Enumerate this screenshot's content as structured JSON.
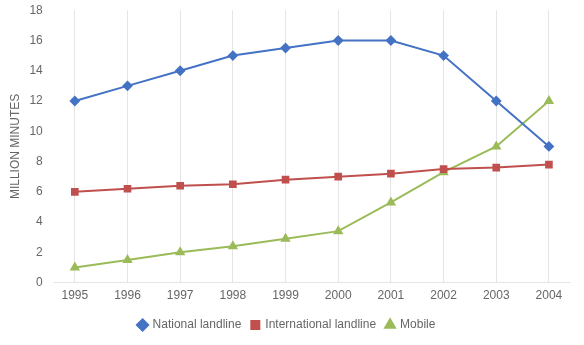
{
  "chart_data": {
    "type": "line",
    "y_label": "MILLION MINUTES",
    "x": [
      1995,
      1996,
      1997,
      1998,
      1999,
      2000,
      2001,
      2002,
      2003,
      2004
    ],
    "series": [
      {
        "name": "National landline",
        "color": "#4472c4",
        "marker": "diamond",
        "values": [
          12,
          13,
          14,
          15,
          15.5,
          16,
          16,
          15,
          12,
          9
        ]
      },
      {
        "name": "International landline",
        "color": "#c0504d",
        "marker": "square",
        "values": [
          6,
          6.2,
          6.4,
          6.5,
          6.8,
          7,
          7.2,
          7.5,
          7.6,
          7.8
        ]
      },
      {
        "name": "Mobile",
        "color": "#9bbb59",
        "marker": "triangle",
        "values": [
          1,
          1.5,
          2,
          2.4,
          2.9,
          3.4,
          5.3,
          7.3,
          9,
          12
        ]
      }
    ],
    "xlim": [
      1994.6,
      2004.4
    ],
    "xticks": [
      1995,
      1996,
      1997,
      1998,
      1999,
      2000,
      2001,
      2002,
      2003,
      2004
    ],
    "ylim": [
      0,
      18
    ],
    "yticks": [
      0,
      2,
      4,
      6,
      8,
      10,
      12,
      14,
      16,
      18
    ],
    "grid": "x",
    "legend": "bottom"
  }
}
